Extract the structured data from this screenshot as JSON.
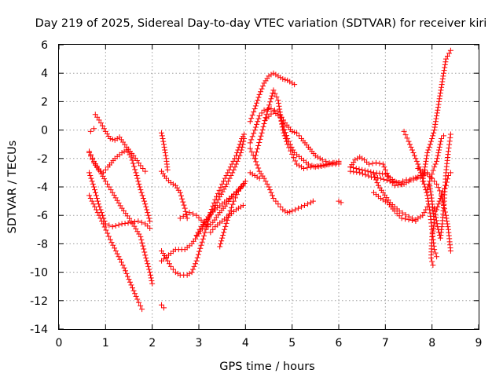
{
  "chart_data": {
    "type": "scatter",
    "title": "Day 219 of 2025, Sidereal Day-to-day VTEC variation (SDTVAR) for receiver kiri",
    "xlabel": "GPS time / hours",
    "ylabel": "SDTVAR / TECUs",
    "xlim": [
      0,
      9
    ],
    "ylim": [
      -14,
      6
    ],
    "x_ticks": [
      "0",
      "1",
      "2",
      "3",
      "4",
      "5",
      "6",
      "7",
      "8",
      "9"
    ],
    "y_ticks": [
      "-14",
      "-12",
      "-10",
      "-8",
      "-6",
      "-4",
      "-2",
      "0",
      "2",
      "4",
      "6"
    ],
    "grid": true,
    "marker": "+",
    "series_color": "#ff0000",
    "tracks": [
      [
        [
          0.68,
          -0.1
        ],
        [
          0.75,
          0.1
        ]
      ],
      [
        [
          0.78,
          1.1
        ],
        [
          0.9,
          0.5
        ],
        [
          1.0,
          -0.1
        ],
        [
          1.1,
          -0.6
        ],
        [
          1.2,
          -0.7
        ],
        [
          1.3,
          -0.5
        ],
        [
          1.45,
          -1.2
        ],
        [
          1.6,
          -1.8
        ],
        [
          1.75,
          -2.5
        ],
        [
          1.85,
          -2.9
        ]
      ],
      [
        [
          0.65,
          -1.6
        ],
        [
          0.75,
          -2.3
        ],
        [
          0.85,
          -2.8
        ],
        [
          0.95,
          -3.0
        ],
        [
          1.05,
          -2.6
        ],
        [
          1.2,
          -2.0
        ],
        [
          1.35,
          -1.6
        ],
        [
          1.45,
          -1.4
        ],
        [
          1.55,
          -1.9
        ],
        [
          1.65,
          -3.0
        ],
        [
          1.75,
          -4.2
        ],
        [
          1.85,
          -5.2
        ],
        [
          1.95,
          -6.4
        ]
      ],
      [
        [
          0.65,
          -1.5
        ],
        [
          0.75,
          -2.2
        ],
        [
          0.88,
          -2.9
        ],
        [
          1.0,
          -3.6
        ],
        [
          1.15,
          -4.4
        ],
        [
          1.35,
          -5.5
        ],
        [
          1.55,
          -6.4
        ],
        [
          1.75,
          -7.5
        ],
        [
          1.85,
          -8.8
        ],
        [
          1.95,
          -10.0
        ],
        [
          2.0,
          -10.8
        ]
      ],
      [
        [
          0.65,
          -3.0
        ],
        [
          0.75,
          -4.0
        ],
        [
          0.85,
          -5.2
        ],
        [
          1.0,
          -6.6
        ],
        [
          1.15,
          -6.8
        ],
        [
          1.35,
          -6.6
        ],
        [
          1.55,
          -6.5
        ],
        [
          1.7,
          -6.4
        ],
        [
          1.85,
          -6.6
        ],
        [
          1.95,
          -6.9
        ]
      ],
      [
        [
          0.65,
          -4.6
        ],
        [
          0.8,
          -5.6
        ],
        [
          0.95,
          -6.6
        ],
        [
          1.1,
          -7.7
        ],
        [
          1.25,
          -8.7
        ],
        [
          1.4,
          -9.7
        ],
        [
          1.55,
          -10.9
        ],
        [
          1.68,
          -11.9
        ],
        [
          1.78,
          -12.6
        ]
      ],
      [
        [
          2.2,
          -0.2
        ],
        [
          2.25,
          -1.0
        ],
        [
          2.3,
          -2.0
        ],
        [
          2.33,
          -2.8
        ]
      ],
      [
        [
          2.2,
          -2.9
        ],
        [
          2.3,
          -3.4
        ],
        [
          2.4,
          -3.7
        ],
        [
          2.5,
          -3.9
        ],
        [
          2.6,
          -4.4
        ],
        [
          2.7,
          -5.5
        ],
        [
          2.75,
          -6.2
        ]
      ],
      [
        [
          2.2,
          -8.5
        ],
        [
          2.3,
          -9.0
        ],
        [
          2.4,
          -9.6
        ],
        [
          2.5,
          -10.0
        ],
        [
          2.6,
          -10.2
        ],
        [
          2.75,
          -10.2
        ],
        [
          2.85,
          -10.0
        ],
        [
          2.95,
          -9.2
        ],
        [
          3.05,
          -8.1
        ],
        [
          3.15,
          -7.0
        ],
        [
          3.25,
          -5.8
        ],
        [
          3.35,
          -4.9
        ],
        [
          3.5,
          -3.8
        ],
        [
          3.65,
          -2.8
        ],
        [
          3.8,
          -1.8
        ],
        [
          3.92,
          -0.6
        ],
        [
          3.97,
          -0.3
        ]
      ],
      [
        [
          2.2,
          -9.2
        ],
        [
          2.35,
          -8.8
        ],
        [
          2.5,
          -8.4
        ],
        [
          2.7,
          -8.4
        ],
        [
          2.85,
          -8.0
        ],
        [
          3.0,
          -7.3
        ],
        [
          3.15,
          -6.5
        ],
        [
          3.3,
          -5.7
        ],
        [
          3.45,
          -4.7
        ],
        [
          3.6,
          -3.8
        ],
        [
          3.75,
          -2.8
        ],
        [
          3.9,
          -1.6
        ],
        [
          3.97,
          -0.6
        ]
      ],
      [
        [
          2.6,
          -6.2
        ],
        [
          2.8,
          -5.8
        ],
        [
          2.95,
          -6.0
        ],
        [
          3.1,
          -6.5
        ],
        [
          3.2,
          -6.8
        ],
        [
          3.3,
          -6.5
        ],
        [
          3.45,
          -5.8
        ],
        [
          3.6,
          -5.2
        ],
        [
          3.75,
          -4.5
        ],
        [
          3.9,
          -4.0
        ]
      ],
      [
        [
          2.95,
          -7.4
        ],
        [
          3.05,
          -6.8
        ],
        [
          3.2,
          -6.1
        ],
        [
          3.35,
          -5.6
        ],
        [
          3.5,
          -5.2
        ],
        [
          3.65,
          -4.8
        ],
        [
          3.8,
          -4.4
        ],
        [
          3.95,
          -3.9
        ],
        [
          4.0,
          -3.6
        ]
      ],
      [
        [
          3.25,
          -7.2
        ],
        [
          3.35,
          -6.8
        ],
        [
          3.5,
          -6.4
        ],
        [
          3.65,
          -6.0
        ],
        [
          3.8,
          -5.6
        ],
        [
          3.95,
          -5.3
        ]
      ],
      [
        [
          3.45,
          -8.2
        ],
        [
          3.55,
          -7.0
        ],
        [
          3.65,
          -5.9
        ],
        [
          3.75,
          -5.0
        ],
        [
          3.85,
          -4.3
        ],
        [
          3.95,
          -3.8
        ]
      ],
      [
        [
          2.2,
          -12.3
        ],
        [
          2.25,
          -12.5
        ]
      ],
      [
        [
          4.1,
          -3.0
        ],
        [
          4.2,
          -3.2
        ],
        [
          4.3,
          -3.4
        ]
      ],
      [
        [
          4.1,
          -1.3
        ],
        [
          4.2,
          -2.0
        ],
        [
          4.3,
          -2.9
        ],
        [
          4.4,
          -3.4
        ],
        [
          4.5,
          -4.0
        ],
        [
          4.6,
          -4.8
        ],
        [
          4.7,
          -5.2
        ],
        [
          4.8,
          -5.6
        ],
        [
          4.9,
          -5.8
        ],
        [
          5.0,
          -5.7
        ],
        [
          5.2,
          -5.4
        ],
        [
          5.4,
          -5.1
        ],
        [
          5.45,
          -5.0
        ]
      ],
      [
        [
          4.1,
          0.6
        ],
        [
          4.2,
          1.5
        ],
        [
          4.3,
          2.5
        ],
        [
          4.4,
          3.3
        ],
        [
          4.5,
          3.8
        ],
        [
          4.6,
          4.0
        ],
        [
          4.7,
          3.8
        ],
        [
          4.8,
          3.6
        ],
        [
          4.9,
          3.5
        ],
        [
          5.0,
          3.3
        ],
        [
          5.05,
          3.2
        ]
      ],
      [
        [
          4.1,
          -0.9
        ],
        [
          4.2,
          0.0
        ],
        [
          4.3,
          1.0
        ],
        [
          4.4,
          1.4
        ],
        [
          4.55,
          1.5
        ],
        [
          4.7,
          1.3
        ],
        [
          4.85,
          0.5
        ],
        [
          5.0,
          -0.1
        ],
        [
          5.1,
          -0.2
        ],
        [
          5.2,
          -0.6
        ],
        [
          5.35,
          -1.2
        ],
        [
          5.5,
          -1.8
        ],
        [
          5.65,
          -2.1
        ],
        [
          5.8,
          -2.3
        ],
        [
          5.95,
          -2.3
        ],
        [
          6.0,
          -2.2
        ]
      ],
      [
        [
          4.2,
          -2.0
        ],
        [
          4.35,
          -0.2
        ],
        [
          4.45,
          1.1
        ],
        [
          4.55,
          2.2
        ],
        [
          4.6,
          2.8
        ],
        [
          4.7,
          2.1
        ],
        [
          4.8,
          0.0
        ],
        [
          4.9,
          -1.0
        ],
        [
          5.0,
          -1.7
        ],
        [
          5.1,
          -2.4
        ],
        [
          5.25,
          -2.7
        ],
        [
          5.4,
          -2.6
        ],
        [
          5.6,
          -2.5
        ],
        [
          5.8,
          -2.4
        ],
        [
          6.0,
          -2.4
        ]
      ],
      [
        [
          4.45,
          0.8
        ],
        [
          4.6,
          1.3
        ],
        [
          4.75,
          0.9
        ],
        [
          4.9,
          -0.6
        ],
        [
          5.05,
          -1.6
        ],
        [
          5.2,
          -2.0
        ],
        [
          5.35,
          -2.4
        ],
        [
          5.5,
          -2.6
        ],
        [
          5.7,
          -2.5
        ],
        [
          5.9,
          -2.3
        ],
        [
          6.0,
          -2.3
        ]
      ],
      [
        [
          6.0,
          -5.0
        ],
        [
          6.05,
          -5.1
        ]
      ],
      [
        [
          6.25,
          -2.6
        ],
        [
          6.35,
          -2.1
        ],
        [
          6.45,
          -1.9
        ],
        [
          6.55,
          -2.1
        ],
        [
          6.65,
          -2.4
        ],
        [
          6.8,
          -2.3
        ],
        [
          6.95,
          -2.4
        ],
        [
          7.0,
          -2.8
        ],
        [
          7.1,
          -3.5
        ],
        [
          7.2,
          -3.9
        ],
        [
          7.4,
          -3.8
        ],
        [
          7.5,
          -3.6
        ],
        [
          7.6,
          -3.4
        ],
        [
          7.7,
          -3.3
        ],
        [
          7.8,
          -3.1
        ]
      ],
      [
        [
          6.25,
          -2.9
        ],
        [
          6.45,
          -3.0
        ],
        [
          6.7,
          -3.3
        ],
        [
          6.9,
          -3.4
        ],
        [
          7.1,
          -3.6
        ],
        [
          7.3,
          -3.7
        ],
        [
          7.45,
          -3.5
        ],
        [
          7.6,
          -3.5
        ],
        [
          7.75,
          -3.3
        ],
        [
          7.9,
          -3.0
        ]
      ],
      [
        [
          6.25,
          -2.6
        ],
        [
          6.5,
          -2.8
        ],
        [
          6.75,
          -3.0
        ],
        [
          7.0,
          -3.1
        ],
        [
          7.2,
          -3.6
        ],
        [
          7.35,
          -3.8
        ]
      ],
      [
        [
          6.75,
          -3.1
        ],
        [
          6.85,
          -3.9
        ],
        [
          6.95,
          -4.4
        ],
        [
          7.1,
          -5.1
        ],
        [
          7.3,
          -5.7
        ],
        [
          7.5,
          -6.1
        ],
        [
          7.65,
          -6.3
        ],
        [
          7.8,
          -6.0
        ],
        [
          7.9,
          -5.4
        ]
      ],
      [
        [
          6.75,
          -4.4
        ],
        [
          6.9,
          -4.8
        ],
        [
          7.05,
          -5.1
        ],
        [
          7.2,
          -5.7
        ],
        [
          7.35,
          -6.2
        ],
        [
          7.5,
          -6.3
        ],
        [
          7.65,
          -6.4
        ]
      ],
      [
        [
          7.4,
          -0.1
        ],
        [
          7.5,
          -0.8
        ],
        [
          7.6,
          -1.6
        ],
        [
          7.7,
          -2.4
        ],
        [
          7.8,
          -3.4
        ],
        [
          7.9,
          -4.6
        ],
        [
          7.95,
          -5.6
        ],
        [
          8.0,
          -7.0
        ],
        [
          8.05,
          -8.4
        ],
        [
          8.1,
          -8.9
        ]
      ],
      [
        [
          7.7,
          -2.7
        ],
        [
          7.8,
          -2.9
        ],
        [
          7.9,
          -3.1
        ],
        [
          8.0,
          -3.4
        ],
        [
          8.1,
          -3.8
        ],
        [
          8.2,
          -4.5
        ],
        [
          8.25,
          -5.3
        ],
        [
          8.3,
          -6.0
        ],
        [
          8.35,
          -7.0
        ],
        [
          8.4,
          -8.5
        ]
      ],
      [
        [
          7.8,
          -3.6
        ],
        [
          7.85,
          -2.6
        ],
        [
          7.9,
          -1.6
        ],
        [
          8.0,
          -0.6
        ],
        [
          8.05,
          0.0
        ],
        [
          8.1,
          1.0
        ],
        [
          8.15,
          2.0
        ],
        [
          8.2,
          3.0
        ],
        [
          8.25,
          4.0
        ],
        [
          8.3,
          5.0
        ],
        [
          8.4,
          5.6
        ]
      ],
      [
        [
          7.9,
          -4.2
        ],
        [
          7.95,
          -3.6
        ],
        [
          8.0,
          -3.1
        ],
        [
          8.05,
          -2.6
        ],
        [
          8.1,
          -2.2
        ],
        [
          8.15,
          -1.4
        ],
        [
          8.2,
          -0.6
        ],
        [
          8.25,
          -0.4
        ]
      ],
      [
        [
          7.95,
          -3.9
        ],
        [
          8.0,
          -5.0
        ],
        [
          8.05,
          -6.5
        ],
        [
          8.0,
          -7.5
        ],
        [
          7.98,
          -9.0
        ],
        [
          8.02,
          -9.5
        ]
      ],
      [
        [
          8.05,
          -5.5
        ],
        [
          8.12,
          -6.8
        ],
        [
          8.18,
          -7.6
        ],
        [
          8.22,
          -6.6
        ],
        [
          8.26,
          -5.0
        ],
        [
          8.3,
          -3.0
        ],
        [
          8.35,
          -1.5
        ],
        [
          8.4,
          -0.3
        ]
      ],
      [
        [
          8.1,
          -5.6
        ],
        [
          8.2,
          -4.6
        ],
        [
          8.3,
          -3.9
        ],
        [
          8.35,
          -3.2
        ],
        [
          8.4,
          -3.0
        ]
      ]
    ]
  }
}
